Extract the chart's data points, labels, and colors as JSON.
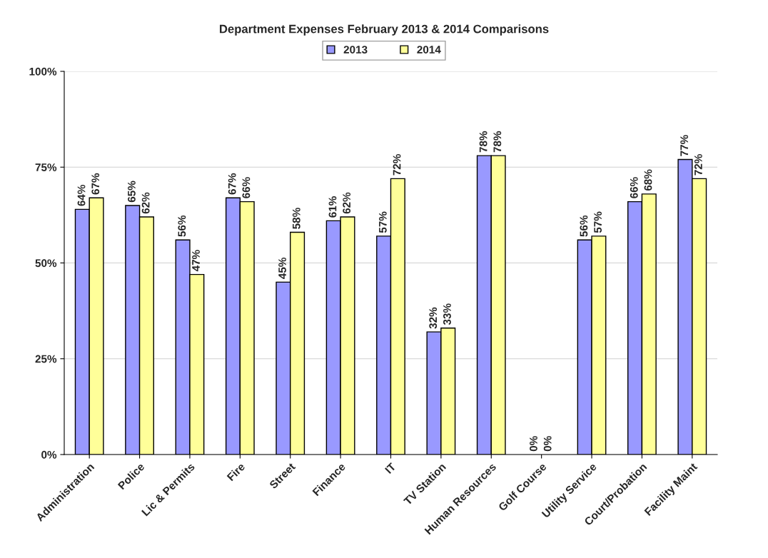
{
  "chart_data": {
    "type": "bar",
    "title": "Department Expenses February 2013 & 2014 Comparisons",
    "categories": [
      "Administration",
      "Police",
      "Lic & Permits",
      "Fire",
      "Street",
      "Finance",
      "IT",
      "TV Station",
      "Human Resources",
      "Golf Course",
      "Utility Service",
      "Court/Probation",
      "Facility Maint"
    ],
    "series": [
      {
        "name": "2013",
        "color": "#9999ff",
        "values": [
          64,
          65,
          56,
          67,
          45,
          61,
          57,
          32,
          78,
          0,
          56,
          66,
          77
        ],
        "value_labels": [
          "64%",
          "65%",
          "56%",
          "67%",
          "45%",
          "61%",
          "57%",
          "32%",
          "78%",
          "0%",
          "56%",
          "66%",
          "77%"
        ]
      },
      {
        "name": "2014",
        "color": "#ffff99",
        "values": [
          67,
          62,
          47,
          66,
          58,
          62,
          72,
          33,
          78,
          0,
          57,
          68,
          72
        ],
        "value_labels": [
          "67%",
          "62%",
          "47%",
          "66%",
          "58%",
          "62%",
          "72%",
          "33%",
          "78%",
          "0%",
          "57%",
          "68%",
          "72%"
        ]
      }
    ],
    "ylim": [
      0,
      100
    ],
    "yticks": [
      {
        "value": 0,
        "label": "0%"
      },
      {
        "value": 25,
        "label": "25%"
      },
      {
        "value": 50,
        "label": "50%"
      },
      {
        "value": 75,
        "label": "75%"
      },
      {
        "value": 100,
        "label": "100%"
      }
    ],
    "grid": "y",
    "legend": "top"
  }
}
